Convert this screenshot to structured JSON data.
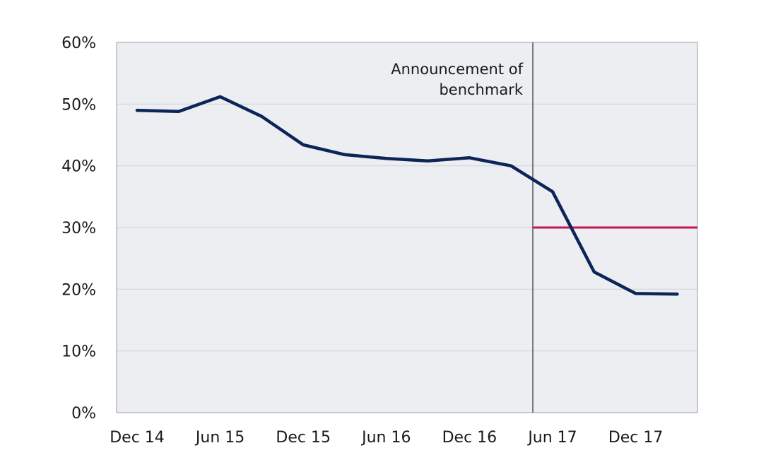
{
  "chart_data": {
    "type": "line",
    "title": "",
    "xlabel": "",
    "ylabel": "",
    "x_ticks": [
      "Dec 14",
      "Jun 15",
      "Dec 15",
      "Jun 16",
      "Dec 16",
      "Jun 17",
      "Dec 17"
    ],
    "x": [
      "Dec 14",
      "Mar 15",
      "Jun 15",
      "Sep 15",
      "Dec 15",
      "Mar 16",
      "Jun 16",
      "Sep 16",
      "Dec 16",
      "Mar 17",
      "Jun 17",
      "Sep 17",
      "Dec 17",
      "Mar 18"
    ],
    "series": [
      {
        "color": "#0b2559",
        "values": [
          49.0,
          48.8,
          51.2,
          48.0,
          43.4,
          41.8,
          41.2,
          40.8,
          41.3,
          40.0,
          35.8,
          22.8,
          19.3,
          19.2
        ]
      }
    ],
    "y_ticks": [
      "0%",
      "10%",
      "20%",
      "30%",
      "40%",
      "50%",
      "60%"
    ],
    "ylim": [
      0,
      60
    ],
    "grid": true,
    "legend": "none",
    "benchmark": {
      "value": 30,
      "from": "Jun 17",
      "color": "#c4174f"
    },
    "annotation": {
      "line1": "Announcement of",
      "line2": "benchmark",
      "at": "Jun 17"
    },
    "plot_background": "#eceef1"
  }
}
